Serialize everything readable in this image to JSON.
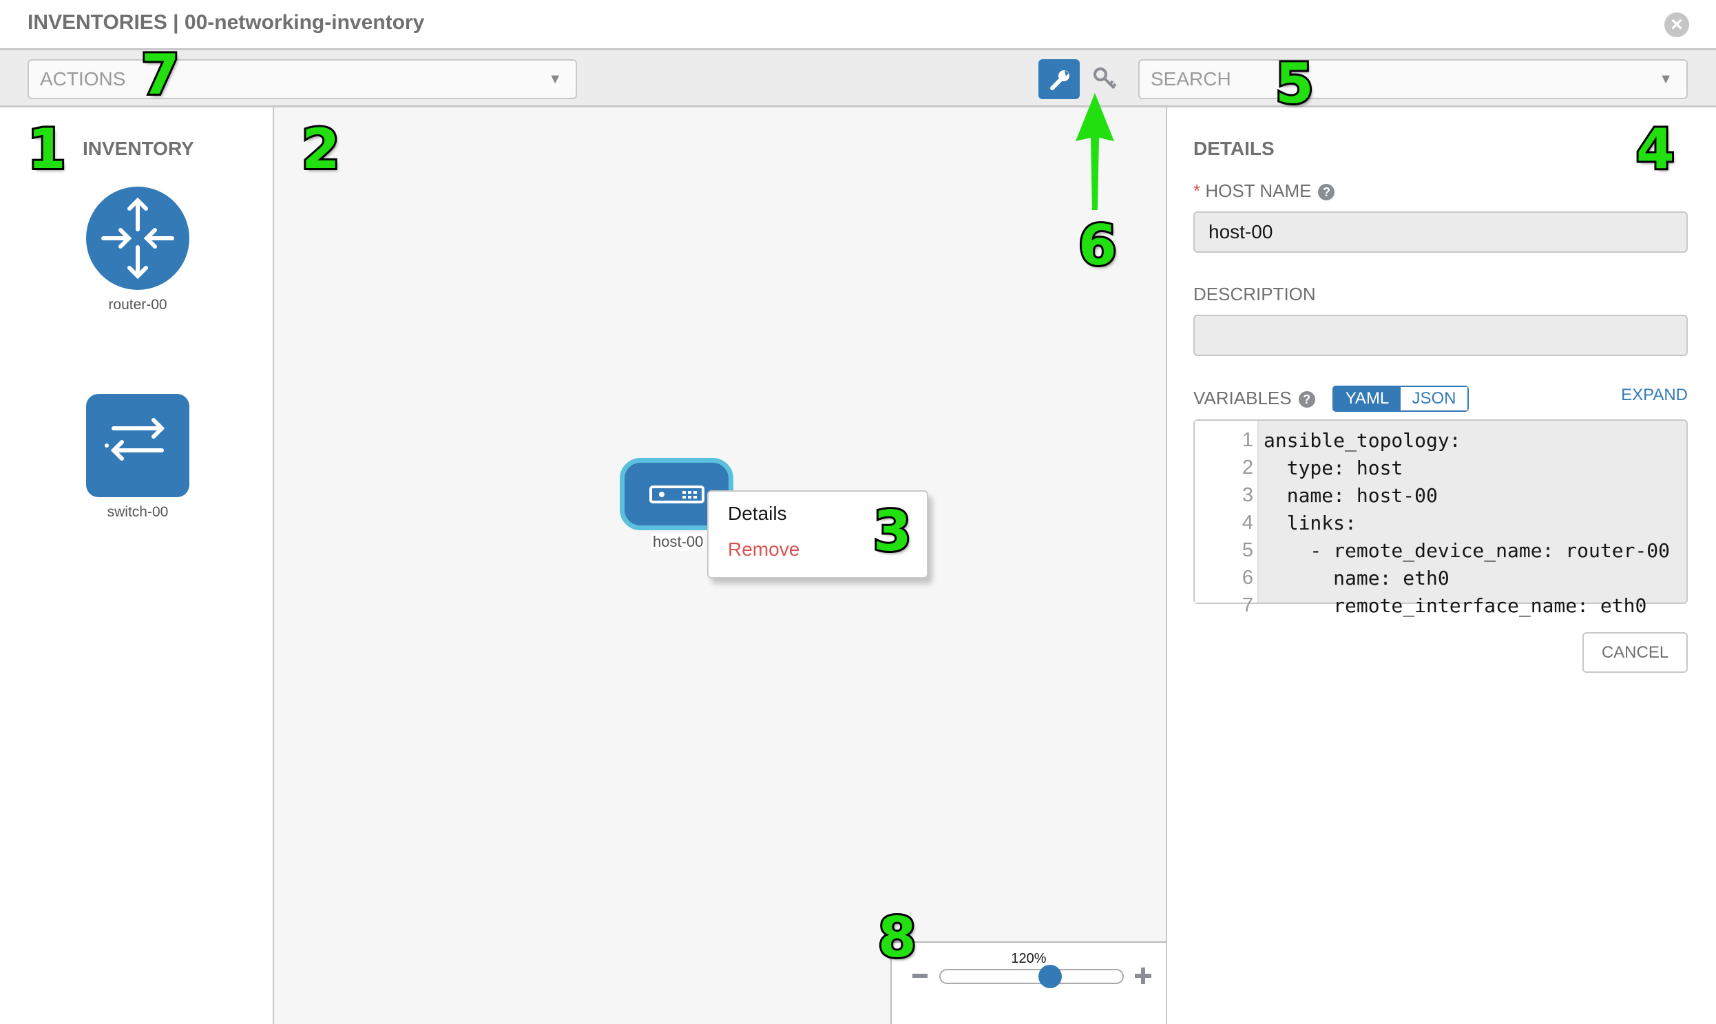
{
  "header": {
    "title": "INVENTORIES | 00-networking-inventory",
    "close_icon": "close-circle-icon"
  },
  "toolbar": {
    "actions_label": "ACTIONS",
    "search_placeholder": "SEARCH",
    "mode_buttons": [
      {
        "icon": "wrench-icon",
        "active": true
      },
      {
        "icon": "key-icon",
        "active": false
      }
    ]
  },
  "inventory": {
    "title": "INVENTORY",
    "items": [
      {
        "label": "router-00",
        "icon": "router-icon"
      },
      {
        "label": "switch-00",
        "icon": "switch-icon"
      }
    ]
  },
  "canvas": {
    "node": {
      "label": "host-00",
      "icon": "host-icon"
    },
    "context_menu": [
      {
        "label": "Details"
      },
      {
        "label": "Remove"
      }
    ]
  },
  "details": {
    "title": "DETAILS",
    "host_name_label": "HOST NAME",
    "required_mark": "*",
    "host_name_value": "host-00",
    "description_label": "DESCRIPTION",
    "description_value": "",
    "variables_label": "VARIABLES",
    "toggle": {
      "yaml": "YAML",
      "json": "JSON",
      "selected": "YAML"
    },
    "expand": "EXPAND",
    "code_lines": [
      {
        "n": "1",
        "t": "ansible_topology:"
      },
      {
        "n": "2",
        "t": "  type: host"
      },
      {
        "n": "3",
        "t": "  name: host-00"
      },
      {
        "n": "4",
        "t": "  links:"
      },
      {
        "n": "5",
        "t": "    - remote_device_name: router-00"
      },
      {
        "n": "6",
        "t": "      name: eth0"
      },
      {
        "n": "7",
        "t": "      remote_interface_name: eth0"
      }
    ],
    "cancel": "CANCEL"
  },
  "zoom": {
    "label": "120%",
    "value_percent": 120,
    "slider_fraction": 0.6
  },
  "annotations": [
    "1",
    "2",
    "3",
    "4",
    "5",
    "6",
    "7",
    "8"
  ],
  "colors": {
    "accent": "#337ab7",
    "danger": "#d9534f",
    "node_border": "#5bc0de",
    "annotation": "#22e010"
  }
}
